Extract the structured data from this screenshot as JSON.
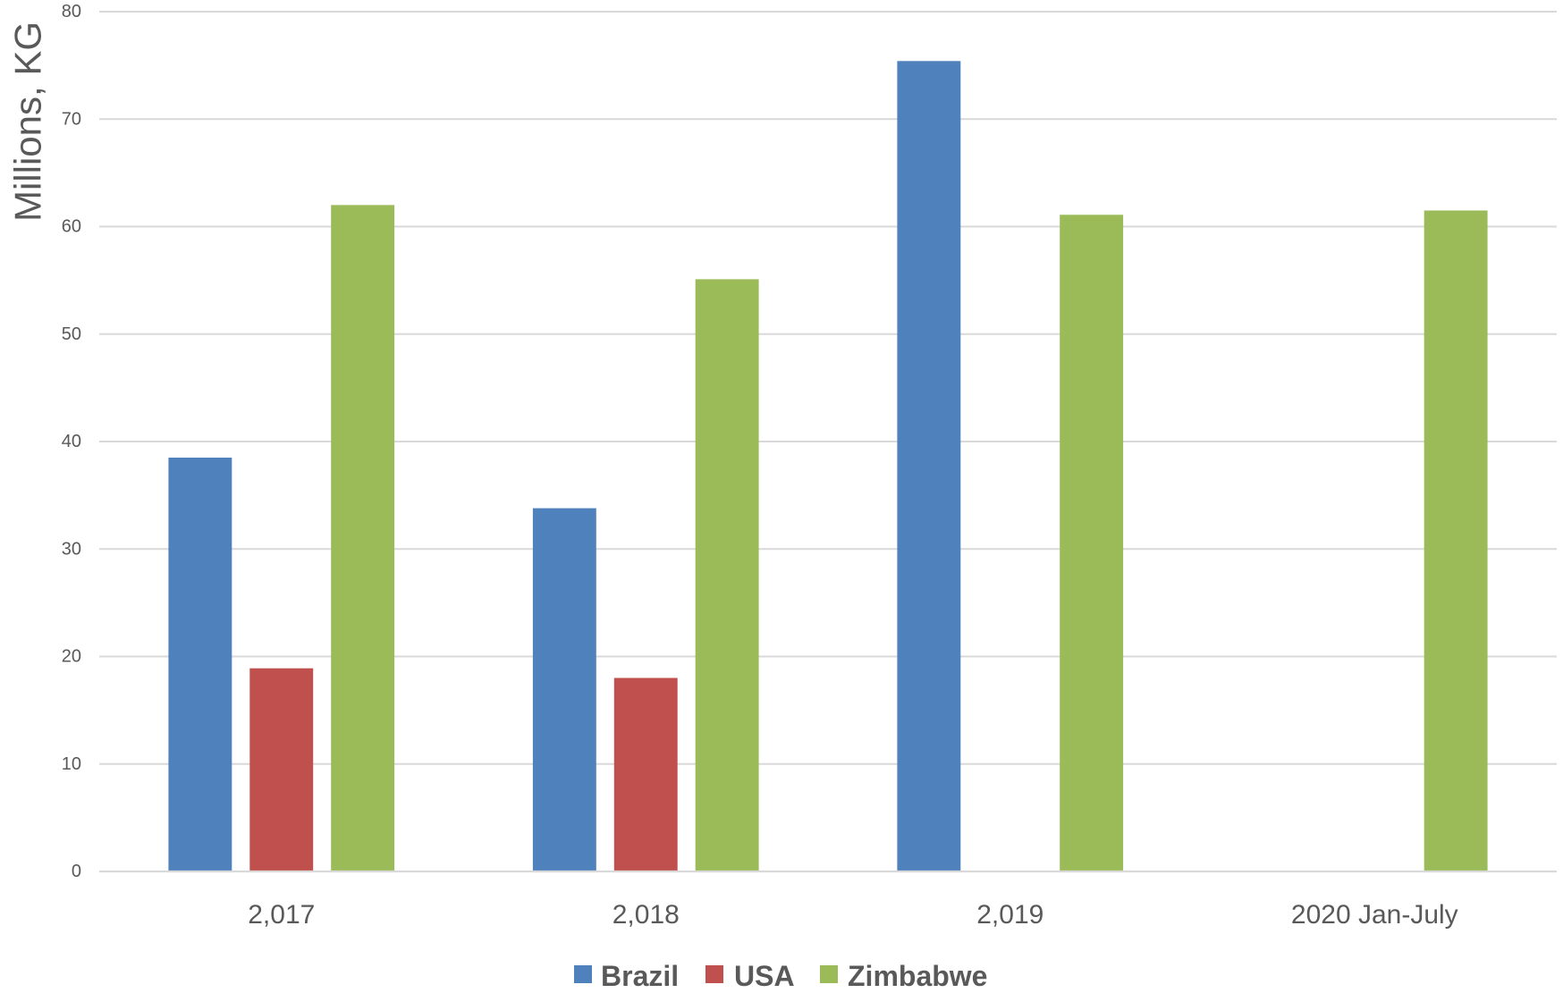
{
  "chart_data": {
    "type": "bar",
    "ylabel": "Millions, KG",
    "categories": [
      "2,017",
      "2,018",
      "2,019",
      "2020 Jan-July"
    ],
    "series": [
      {
        "name": "Brazil",
        "color": "#4F81BD",
        "values": [
          38.5,
          33.8,
          75.4,
          null
        ]
      },
      {
        "name": "USA",
        "color": "#C0504D",
        "values": [
          18.9,
          18.0,
          null,
          null
        ]
      },
      {
        "name": "Zimbabwe",
        "color": "#9BBB59",
        "values": [
          62.0,
          55.1,
          61.1,
          61.5
        ]
      }
    ],
    "ylim": [
      0,
      80
    ],
    "yticks": [
      0,
      10,
      20,
      30,
      40,
      50,
      60,
      70,
      80
    ],
    "grid": true,
    "legend_position": "bottom"
  }
}
